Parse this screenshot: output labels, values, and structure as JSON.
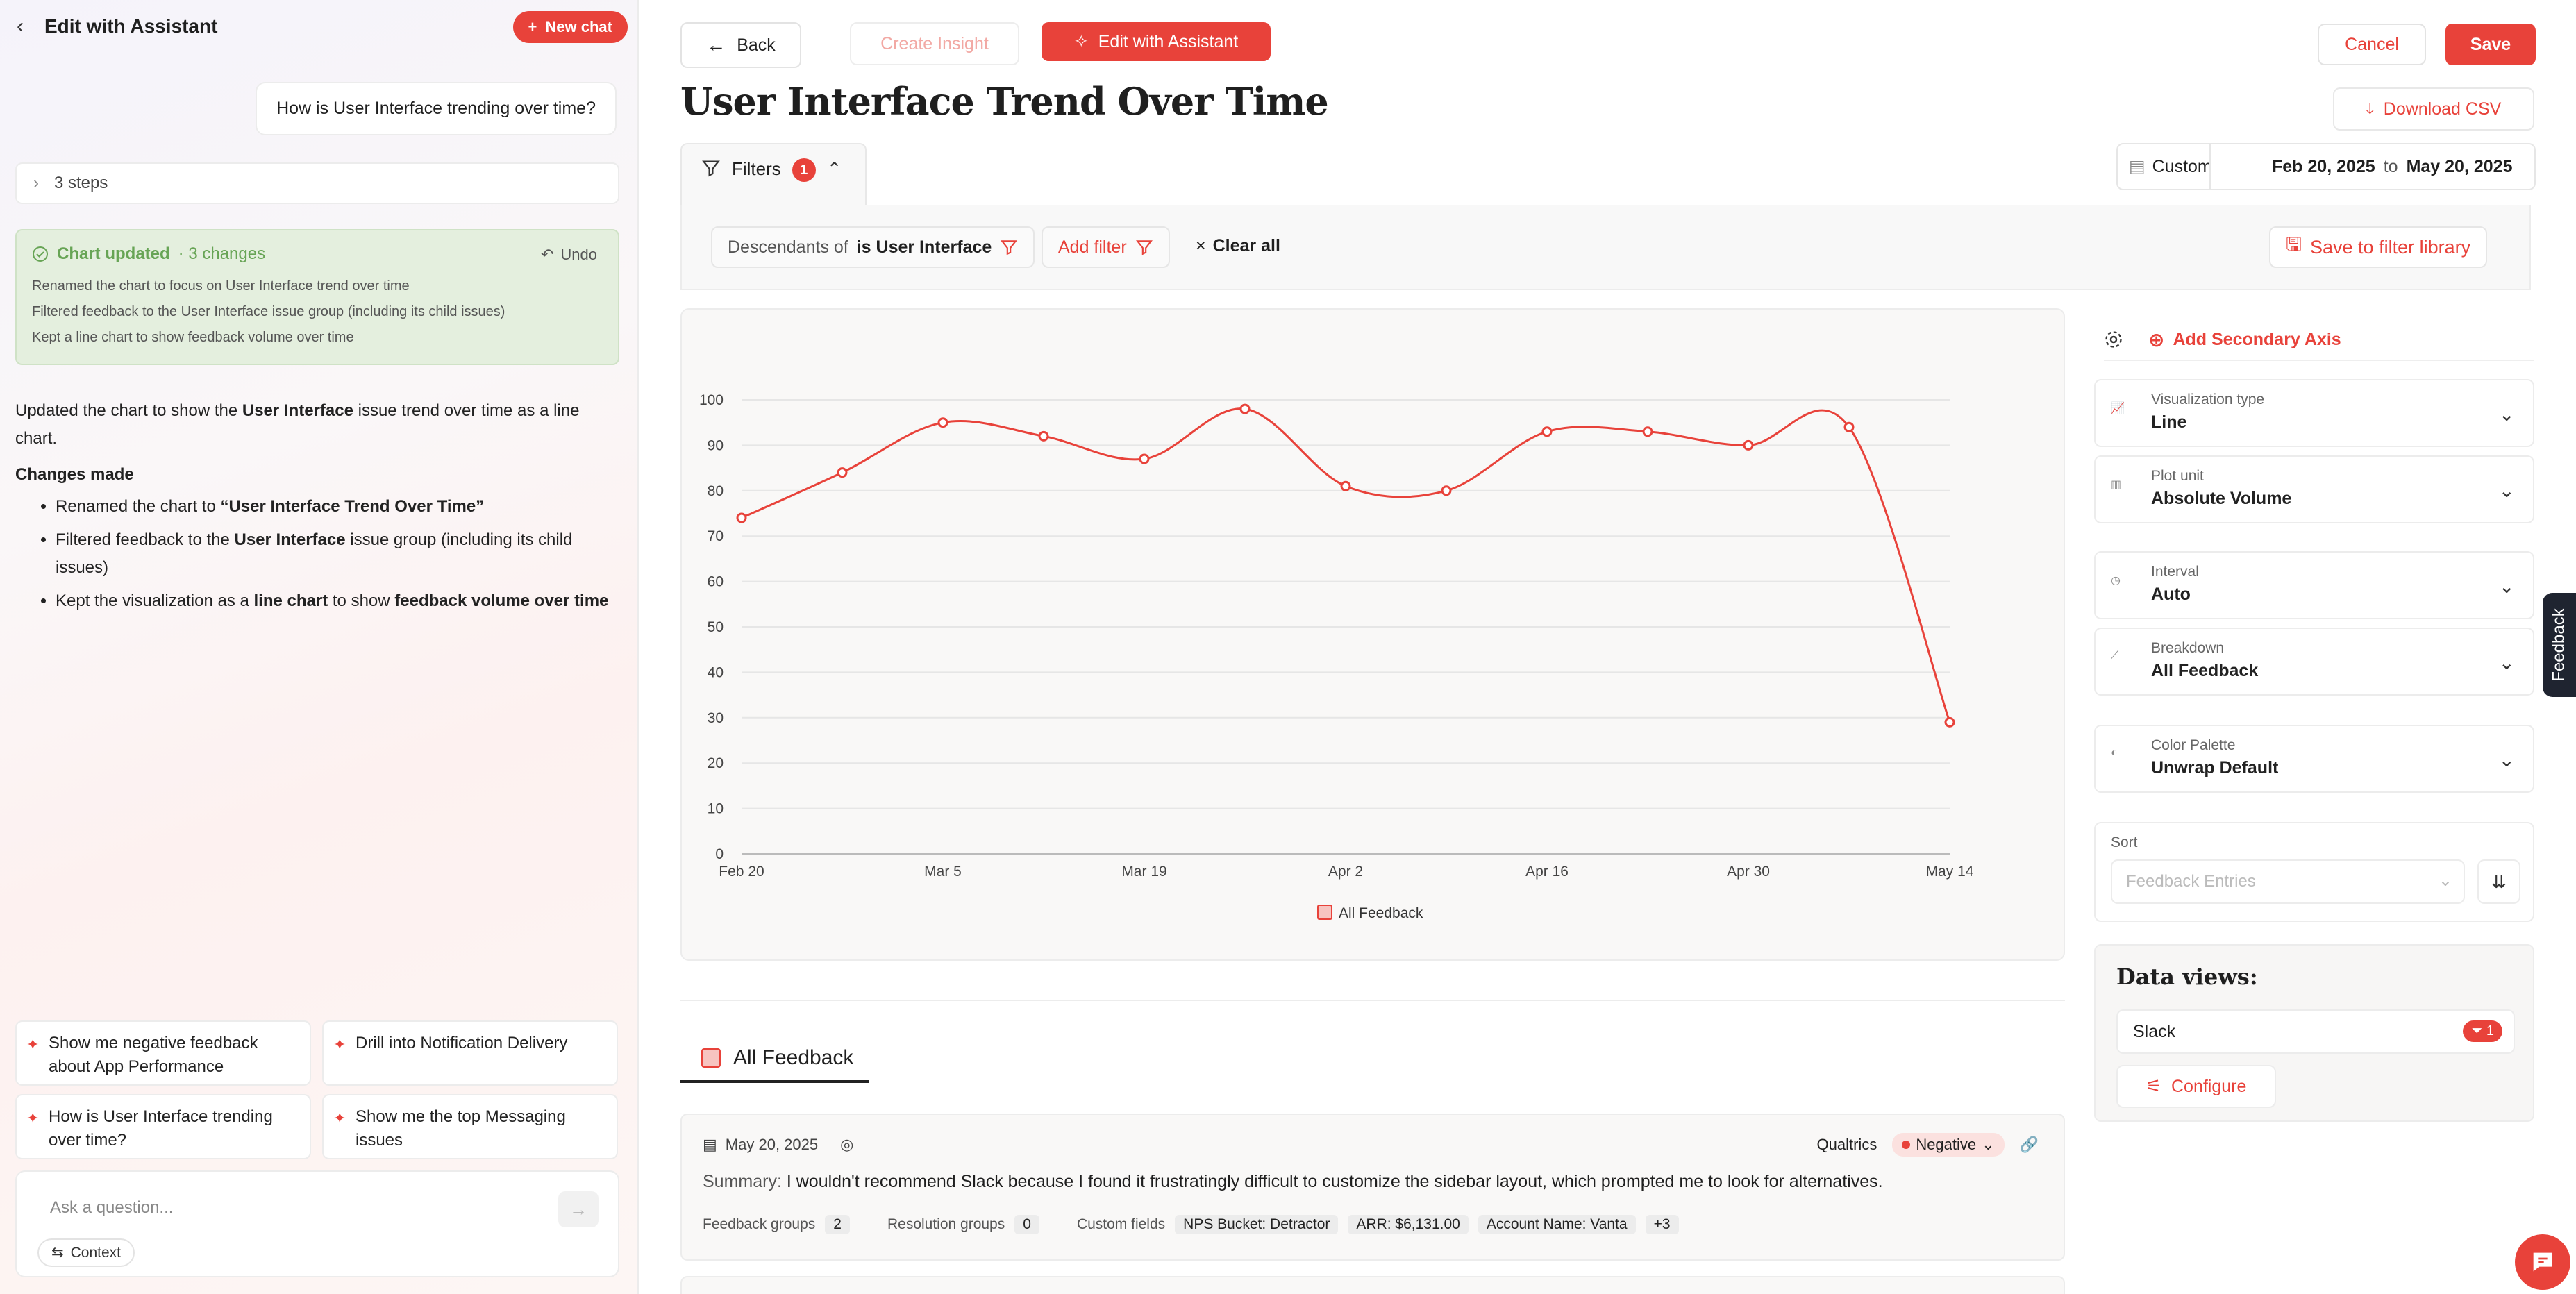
{
  "assistant": {
    "title": "Edit with Assistant",
    "new_chat": "New chat",
    "user_message": "How is User Interface trending over time?",
    "steps": "3 steps",
    "update_box": {
      "title": "Chart updated",
      "changes": "· 3 changes",
      "undo": "Undo",
      "items": [
        "Renamed the chart to focus on User Interface trend over time",
        "Filtered feedback to the User Interface issue group (including its child issues)",
        "Kept a line chart to show feedback volume over time"
      ]
    },
    "reply": {
      "intro_1": "Updated the chart to show the ",
      "intro_bold": "User Interface",
      "intro_2": " issue trend over time as a line chart.",
      "changes_heading": "Changes made",
      "b1_a": "Renamed the chart to ",
      "b1_b": "“User Interface Trend Over Time”",
      "b2_a": "Filtered feedback to the ",
      "b2_b": "User Interface",
      "b2_c": " issue group (including its child issues)",
      "b3_a": "Kept the visualization as a ",
      "b3_b": "line chart",
      "b3_c": " to show ",
      "b3_d": "feedback volume over time"
    },
    "suggestions": [
      "Show me negative feedback about App Performance",
      "Drill into Notification Delivery",
      "How is User Interface trending over time?",
      "Show me the top Messaging issues"
    ],
    "ask_placeholder": "Ask a question...",
    "context": "Context"
  },
  "toolbar": {
    "back": "Back",
    "create_insight": "Create Insight",
    "edit_with_assistant": "Edit with Assistant",
    "cancel": "Cancel",
    "save": "Save",
    "download_csv": "Download CSV"
  },
  "page_title": "User Interface Trend Over Time",
  "filters": {
    "tab_label": "Filters",
    "count": "1",
    "chip_prefix": "Descendants of",
    "chip_value": "is User Interface",
    "add_filter": "Add filter",
    "clear_all": "Clear all",
    "save_library": "Save to filter library"
  },
  "date_range": {
    "preset": "Custom",
    "start": "Feb 20, 2025",
    "to": "to",
    "end": "May 20, 2025"
  },
  "chart_data": {
    "type": "line",
    "x": [
      "Feb 20",
      "Feb 27",
      "Mar 5",
      "Mar 12",
      "Mar 19",
      "Mar 26",
      "Apr 2",
      "Apr 9",
      "Apr 16",
      "Apr 23",
      "Apr 30",
      "May 7",
      "May 14"
    ],
    "x_ticks": [
      "Feb 20",
      "Mar 5",
      "Mar 19",
      "Apr 2",
      "Apr 16",
      "Apr 30",
      "May 14"
    ],
    "series": [
      {
        "name": "All Feedback",
        "values": [
          74,
          84,
          95,
          92,
          87,
          98,
          81,
          80,
          93,
          93,
          90,
          94,
          29
        ],
        "color": "#e8423a"
      }
    ],
    "ylim": [
      0,
      100
    ],
    "y_ticks": [
      0,
      10,
      20,
      30,
      40,
      50,
      60,
      70,
      80,
      90,
      100
    ],
    "grid": true,
    "legend": "bottom-center"
  },
  "settings": {
    "add_secondary_axis": "Add Secondary Axis",
    "visualization_type": {
      "label": "Visualization type",
      "value": "Line"
    },
    "plot_unit": {
      "label": "Plot unit",
      "value": "Absolute Volume"
    },
    "interval": {
      "label": "Interval",
      "value": "Auto"
    },
    "breakdown": {
      "label": "Breakdown",
      "value": "All Feedback"
    },
    "color_palette": {
      "label": "Color Palette",
      "value": "Unwrap Default"
    },
    "sort": {
      "label": "Sort",
      "placeholder": "Feedback Entries"
    }
  },
  "data_views": {
    "title": "Data views:",
    "item": "Slack",
    "item_count": "1",
    "configure": "Configure"
  },
  "feedback_tab": "Feedback",
  "section_tab": "All Feedback",
  "entry": {
    "date": "May 20, 2025",
    "source": "Qualtrics",
    "sentiment": "Negative",
    "summary_label": "Summary:",
    "summary": "I wouldn't recommend Slack because I found it frustratingly difficult to customize the sidebar layout, which prompted me to look for alternatives.",
    "feedback_groups_label": "Feedback groups",
    "feedback_groups": "2",
    "resolution_groups_label": "Resolution groups",
    "resolution_groups": "0",
    "custom_fields_label": "Custom fields",
    "fields": [
      "NPS Bucket: Detractor",
      "ARR: $6,131.00",
      "Account Name: Vanta",
      "+3"
    ]
  }
}
